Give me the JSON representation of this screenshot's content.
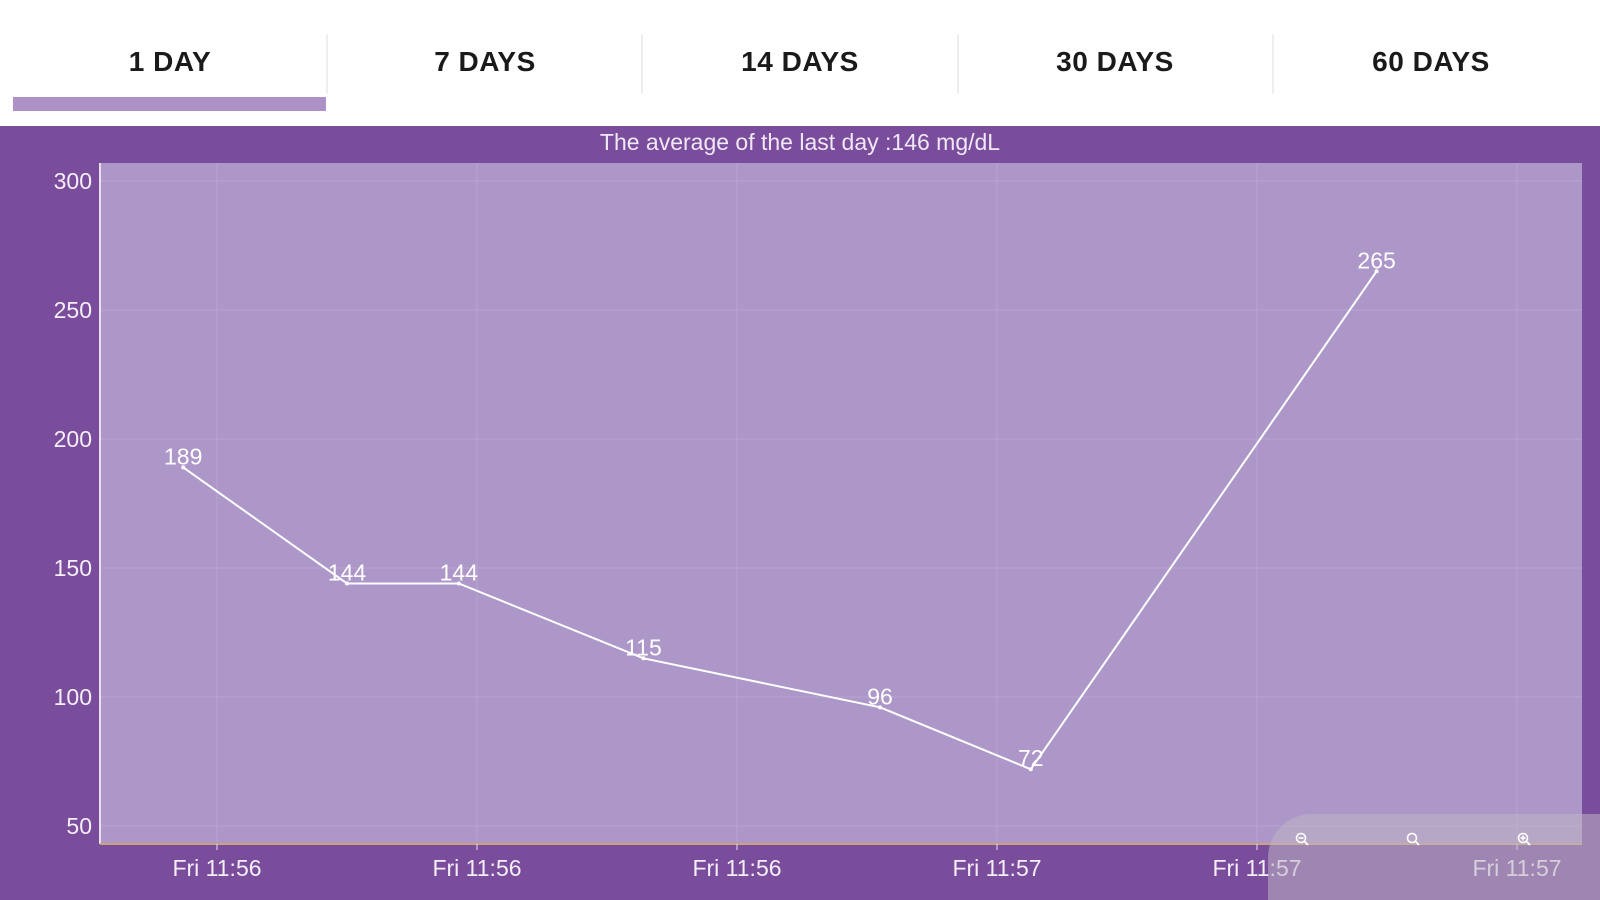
{
  "tabs": [
    {
      "label": "1 DAY",
      "selected": true
    },
    {
      "label": "7 DAYS",
      "selected": false
    },
    {
      "label": "14 DAYS",
      "selected": false
    },
    {
      "label": "30 DAYS",
      "selected": false
    },
    {
      "label": "60 DAYS",
      "selected": false
    }
  ],
  "colors": {
    "panel": "#7a4c9c",
    "plot_area": "#ad97c9",
    "indicator": "#ad91c7",
    "line": "#ffffff",
    "text": "#ffffff"
  },
  "chart_data": {
    "type": "line",
    "title": "The average of the last day :146 mg/dL",
    "ylim": [
      50,
      300
    ],
    "yticks": [
      50,
      100,
      150,
      200,
      250,
      300
    ],
    "xtick_labels": [
      "Fri 11:56",
      "Fri 11:56",
      "Fri 11:56",
      "Fri 11:57",
      "Fri 11:57",
      "Fri 11:57"
    ],
    "xlim": [
      -0.45,
      5.25
    ],
    "xtick_positions": [
      0,
      1,
      2,
      3,
      4,
      5
    ],
    "grid": true,
    "series": [
      {
        "x": [
          -0.13,
          0.5,
          0.93,
          1.64,
          2.55,
          3.13,
          4.46
        ],
        "values": [
          189,
          144,
          144,
          115,
          96,
          72,
          265
        ],
        "labels": [
          "189",
          "144",
          "144",
          "115",
          "96",
          "72",
          "265"
        ]
      }
    ]
  },
  "zoom_controls": [
    "zoom-out-icon",
    "zoom-reset-icon",
    "zoom-in-icon"
  ]
}
